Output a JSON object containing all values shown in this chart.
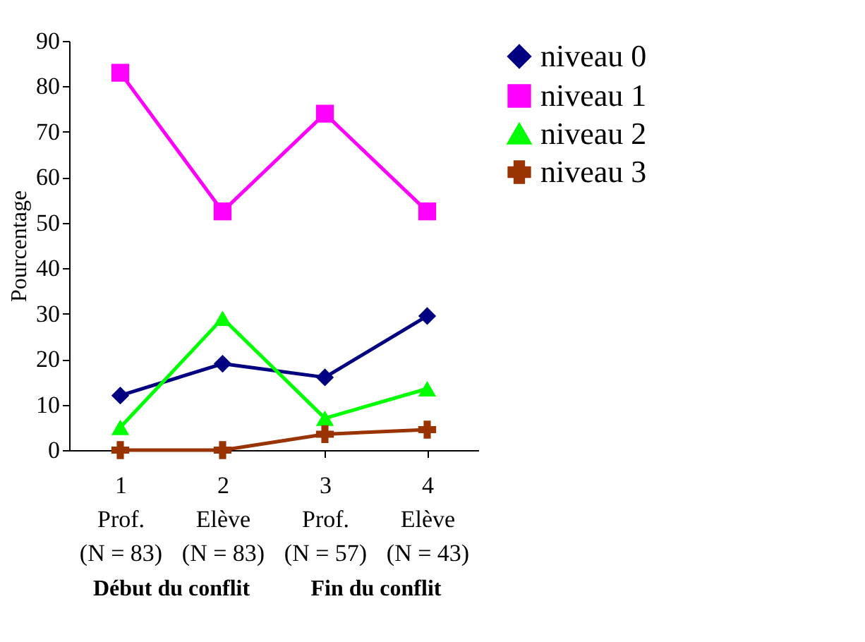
{
  "chart_data": {
    "type": "line",
    "ylabel": "Pourcentage",
    "categories": [
      "1\nProf.\n(N = 83)",
      "2\nElève\n(N = 83)",
      "3\nProf.\n(N = 57)",
      "4\nElève\n(N = 43)"
    ],
    "series": [
      {
        "name": "niveau 0",
        "color": "#000080",
        "marker": "diamond",
        "values": [
          12,
          19,
          16,
          29.5
        ]
      },
      {
        "name": "niveau 1",
        "color": "#ff00ff",
        "marker": "square",
        "values": [
          83,
          52.5,
          74,
          52.5
        ]
      },
      {
        "name": "niveau 2",
        "color": "#00ff00",
        "marker": "triangle",
        "values": [
          5,
          29,
          7,
          13.5
        ]
      },
      {
        "name": "niveau 3",
        "color": "#993300",
        "marker": "cross",
        "values": [
          0,
          0,
          3.5,
          4.5
        ]
      }
    ],
    "ylim": [
      0,
      90
    ],
    "yticks": [
      0,
      10,
      20,
      30,
      40,
      50,
      60,
      70,
      80,
      90
    ],
    "annotations": [
      "Début du conflit",
      "Fin du conflit"
    ],
    "legend": "right",
    "grid": false,
    "line_style": "solid"
  }
}
